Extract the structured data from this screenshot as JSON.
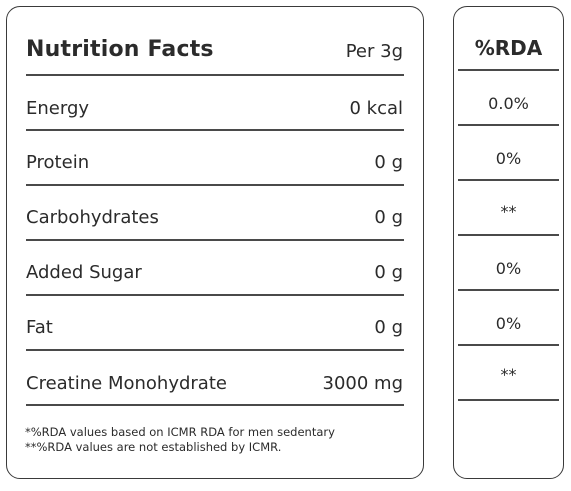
{
  "header": {
    "title": "Nutrition Facts",
    "per": "Per 3g"
  },
  "rows": [
    {
      "label": "Energy",
      "value": "0 kcal",
      "rda": "0.0%"
    },
    {
      "label": "Protein",
      "value": "0 g",
      "rda": "0%"
    },
    {
      "label": "Carbohydrates",
      "value": "0 g",
      "rda": "**"
    },
    {
      "label": "Added Sugar",
      "value": "0 g",
      "rda": "0%"
    },
    {
      "label": "Fat",
      "value": "0 g",
      "rda": "0%"
    },
    {
      "label": "Creatine Monohydrate",
      "value": "3000 mg",
      "rda": "**"
    }
  ],
  "footnotes": [
    "*%RDA values based on ICMR RDA for men sedentary",
    "**%RDA values are not established by ICMR."
  ],
  "rda_header": "%RDA"
}
